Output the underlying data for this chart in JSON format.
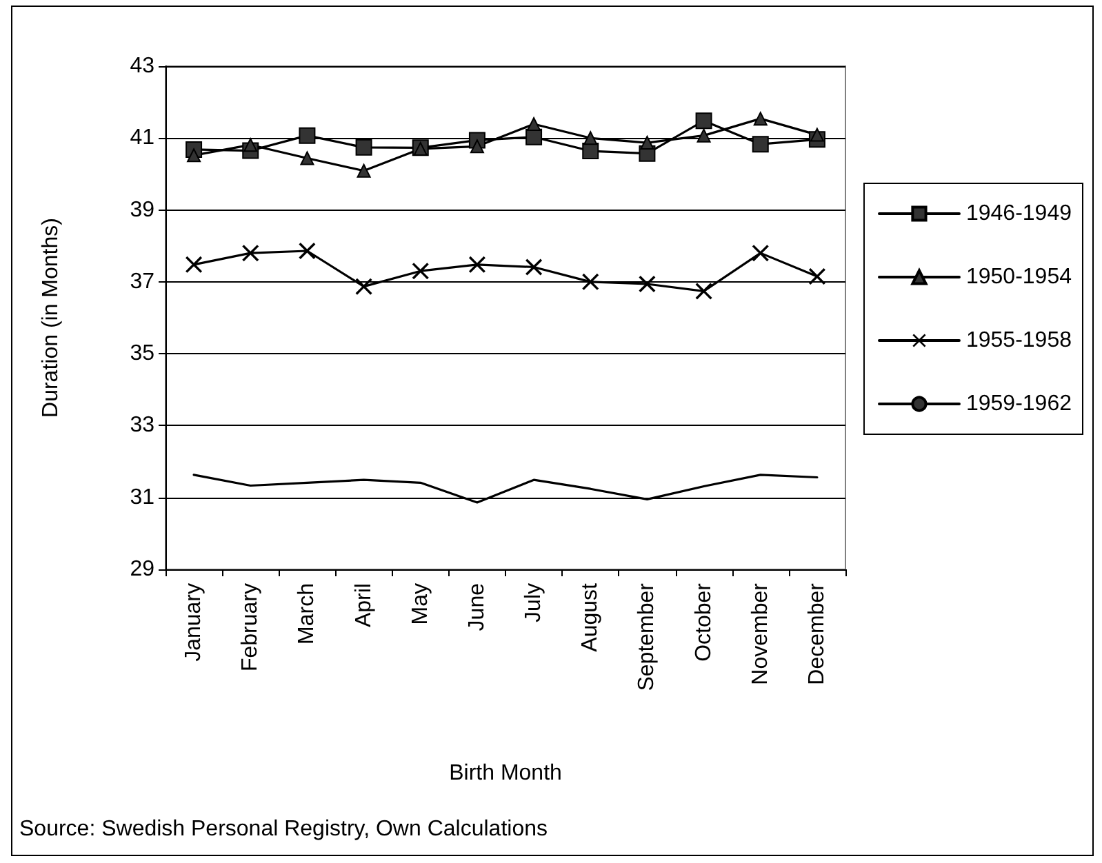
{
  "chart_data": {
    "type": "line",
    "xlabel": "Birth Month",
    "ylabel": "Duration (in Months)",
    "categories": [
      "January",
      "February",
      "March",
      "April",
      "May",
      "June",
      "July",
      "August",
      "September",
      "October",
      "November",
      "December"
    ],
    "series": [
      {
        "name": "1946-1949",
        "color": "#000000",
        "marker": "square",
        "values": [
          40.68,
          40.65,
          41.07,
          40.74,
          40.73,
          40.94,
          41.03,
          40.64,
          40.57,
          41.48,
          40.83,
          40.96
        ]
      },
      {
        "name": "1950-1954",
        "color": "#000000",
        "marker": "triangle",
        "values": [
          40.52,
          40.81,
          40.44,
          40.09,
          40.7,
          40.77,
          41.39,
          41.0,
          40.87,
          41.07,
          41.54,
          41.09
        ]
      },
      {
        "name": "1955-1958",
        "color": "#000000",
        "marker": "cross",
        "values": [
          37.48,
          37.8,
          37.86,
          36.87,
          37.3,
          37.48,
          37.41,
          37.0,
          36.94,
          36.74,
          37.8,
          37.15
        ]
      },
      {
        "name": "1959-1962",
        "color": "#000000",
        "marker": "none",
        "values": [
          31.63,
          31.33,
          31.41,
          31.49,
          31.41,
          30.86,
          31.49,
          31.24,
          30.95,
          31.31,
          31.63,
          31.56
        ]
      }
    ],
    "ylim": [
      29,
      43
    ],
    "yticks": [
      29,
      31,
      33,
      35,
      37,
      39,
      41,
      43
    ],
    "grid": "y",
    "legend": "right",
    "line_style": "solid",
    "annotations": [
      "Source: Swedish Personal Registry, Own Calculations"
    ]
  }
}
